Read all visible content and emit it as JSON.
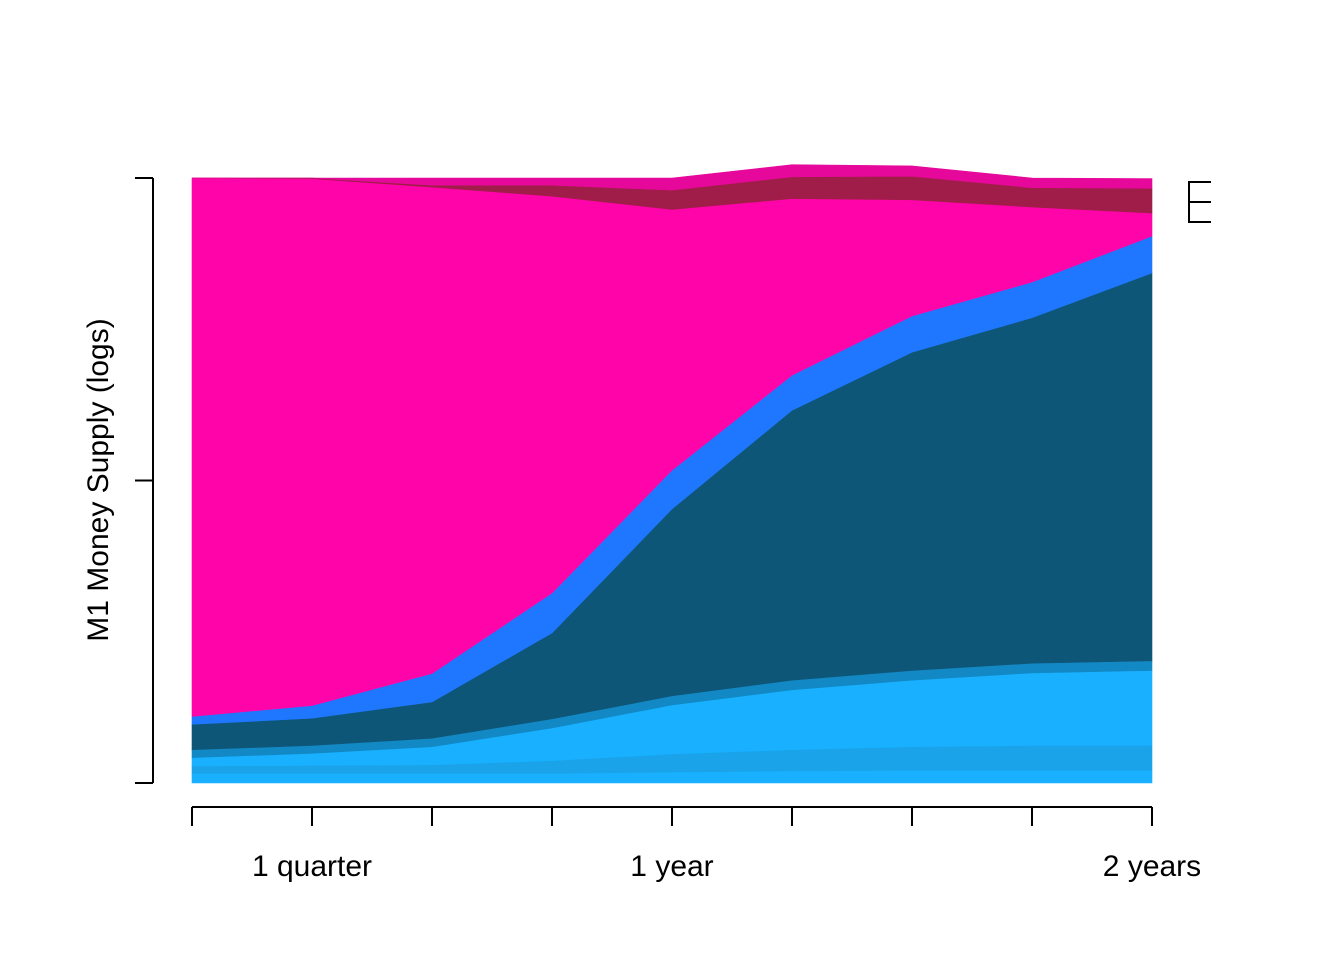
{
  "chart_data": {
    "type": "area",
    "stacked": "proportional",
    "title": "",
    "xlabel": "",
    "ylabel": "M1 Money Supply (logs)",
    "x": [
      0,
      1,
      2,
      3,
      4,
      5,
      6,
      7,
      8
    ],
    "xlim": [
      0,
      8
    ],
    "ylim": [
      0,
      1
    ],
    "x_ticks": [
      0,
      1,
      2,
      3,
      4,
      5,
      6,
      7,
      8
    ],
    "x_tick_labels": [
      {
        "x": 1,
        "label": "1 quarter"
      },
      {
        "x": 4,
        "label": "1 year"
      },
      {
        "x": 8,
        "label": "2 years"
      }
    ],
    "y_ticks": [
      0,
      0.5,
      1
    ],
    "grid": false,
    "legend": "none",
    "series": [
      {
        "color": "#18b0ff",
        "values": [
          0.016,
          0.016,
          0.016,
          0.016,
          0.018,
          0.02,
          0.021,
          0.021,
          0.021
        ]
      },
      {
        "color": "#1aa3e8",
        "values": [
          0.012,
          0.013,
          0.014,
          0.021,
          0.03,
          0.035,
          0.039,
          0.041,
          0.041
        ]
      },
      {
        "color": "#18b0ff",
        "values": [
          0.014,
          0.02,
          0.03,
          0.054,
          0.081,
          0.099,
          0.11,
          0.12,
          0.124
        ]
      },
      {
        "color": "#1288c4",
        "values": [
          0.013,
          0.013,
          0.014,
          0.015,
          0.015,
          0.016,
          0.016,
          0.016,
          0.016
        ]
      },
      {
        "color": "#0e5678",
        "values": [
          0.042,
          0.045,
          0.06,
          0.142,
          0.309,
          0.446,
          0.526,
          0.571,
          0.641
        ]
      },
      {
        "color": "#1f77ff",
        "values": [
          0.013,
          0.021,
          0.047,
          0.066,
          0.064,
          0.058,
          0.06,
          0.059,
          0.061
        ]
      },
      {
        "color": "#ff05a9",
        "values": [
          0.89,
          0.871,
          0.804,
          0.656,
          0.431,
          0.292,
          0.192,
          0.124,
          0.038
        ]
      },
      {
        "color": "#a11d49",
        "values": [
          0.0,
          0.001,
          0.003,
          0.018,
          0.032,
          0.036,
          0.039,
          0.032,
          0.041
        ]
      },
      {
        "color": "#e6089a",
        "values": [
          0.0,
          0.0,
          0.012,
          0.012,
          0.02,
          0.02,
          0.017,
          0.016,
          0.016
        ]
      }
    ]
  }
}
